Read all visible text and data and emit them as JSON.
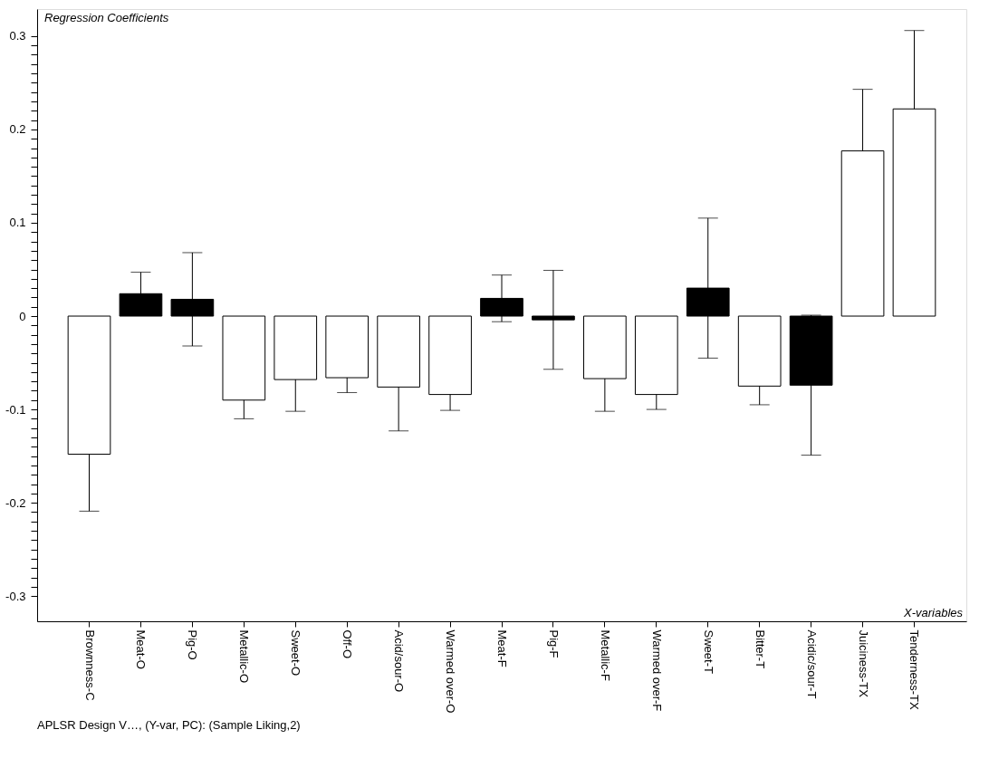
{
  "chart_data": {
    "type": "bar",
    "ylabel": "Regression Coefficients",
    "xlabel": "X-variables",
    "annotations": [
      "APLSR Design V…, (Y-var, PC): (Sample Liking,2)"
    ],
    "categories": [
      "Brownness-C",
      "Meat-O",
      "Pig-O",
      "Metallic-O",
      "Sweet-O",
      "Off-O",
      "Acid/sour-O",
      "Warmed over-O",
      "Meat-F",
      "Pig-F",
      "Metallic-F",
      "Warmed over-F",
      "Sweet-T",
      "Bitter-T",
      "Acidic/sour-T",
      "Juiciness-TX",
      "Tenderness-TX"
    ],
    "values": [
      -0.148,
      0.024,
      0.018,
      -0.09,
      -0.068,
      -0.066,
      -0.076,
      -0.084,
      0.019,
      -0.004,
      -0.067,
      -0.084,
      0.03,
      -0.075,
      -0.074,
      0.177,
      0.222
    ],
    "errors": [
      0.061,
      0.023,
      0.05,
      0.02,
      0.034,
      0.016,
      0.047,
      0.017,
      0.025,
      0.053,
      0.035,
      0.016,
      0.075,
      0.02,
      0.075,
      0.066,
      0.084
    ],
    "colors": [
      "#ffffff",
      "#000000",
      "#000000",
      "#ffffff",
      "#ffffff",
      "#ffffff",
      "#ffffff",
      "#ffffff",
      "#000000",
      "#000000",
      "#ffffff",
      "#ffffff",
      "#000000",
      "#ffffff",
      "#000000",
      "#ffffff",
      "#ffffff"
    ],
    "ylim": [
      -0.327,
      0.329
    ],
    "yticks": [
      -0.3,
      {
        "value": -0.29,
        "label": null
      },
      {
        "value": -0.28,
        "label": null
      },
      {
        "value": -0.27,
        "label": null
      },
      {
        "value": -0.26,
        "label": null
      },
      {
        "value": -0.25,
        "label": null
      },
      {
        "value": -0.24,
        "label": null
      },
      {
        "value": -0.23,
        "label": null
      },
      {
        "value": -0.22,
        "label": null
      },
      {
        "value": -0.21,
        "label": null
      },
      -0.2,
      {
        "value": -0.19,
        "label": null
      },
      {
        "value": -0.18,
        "label": null
      },
      {
        "value": -0.17,
        "label": null
      },
      {
        "value": -0.16,
        "label": null
      },
      {
        "value": -0.15,
        "label": null
      },
      {
        "value": -0.14,
        "label": null
      },
      {
        "value": -0.13,
        "label": null
      },
      {
        "value": -0.12,
        "label": null
      },
      {
        "value": -0.11,
        "label": null
      },
      -0.1,
      {
        "value": -0.09,
        "label": null
      },
      {
        "value": -0.08,
        "label": null
      },
      {
        "value": -0.07,
        "label": null
      },
      {
        "value": -0.06,
        "label": null
      },
      {
        "value": -0.05,
        "label": null
      },
      {
        "value": -0.04,
        "label": null
      },
      {
        "value": -0.03,
        "label": null
      },
      {
        "value": -0.02,
        "label": null
      },
      {
        "value": -0.01,
        "label": null
      },
      0,
      {
        "value": 0.01,
        "label": null
      },
      {
        "value": 0.02,
        "label": null
      },
      {
        "value": 0.03,
        "label": null
      },
      {
        "value": 0.04,
        "label": null
      },
      {
        "value": 0.05,
        "label": null
      },
      {
        "value": 0.06,
        "label": null
      },
      {
        "value": 0.07,
        "label": null
      },
      {
        "value": 0.08,
        "label": null
      },
      {
        "value": 0.09,
        "label": null
      },
      0.1,
      {
        "value": 0.11,
        "label": null
      },
      {
        "value": 0.12,
        "label": null
      },
      {
        "value": 0.13,
        "label": null
      },
      {
        "value": 0.14,
        "label": null
      },
      {
        "value": 0.15,
        "label": null
      },
      {
        "value": 0.16,
        "label": null
      },
      {
        "value": 0.17,
        "label": null
      },
      {
        "value": 0.18,
        "label": null
      },
      {
        "value": 0.19,
        "label": null
      },
      0.2,
      {
        "value": 0.21,
        "label": null
      },
      {
        "value": 0.22,
        "label": null
      },
      {
        "value": 0.23,
        "label": null
      },
      {
        "value": 0.24,
        "label": null
      },
      {
        "value": 0.25,
        "label": null
      },
      {
        "value": 0.26,
        "label": null
      },
      {
        "value": 0.27,
        "label": null
      },
      {
        "value": 0.28,
        "label": null
      },
      {
        "value": 0.29,
        "label": null
      },
      0.3
    ]
  }
}
